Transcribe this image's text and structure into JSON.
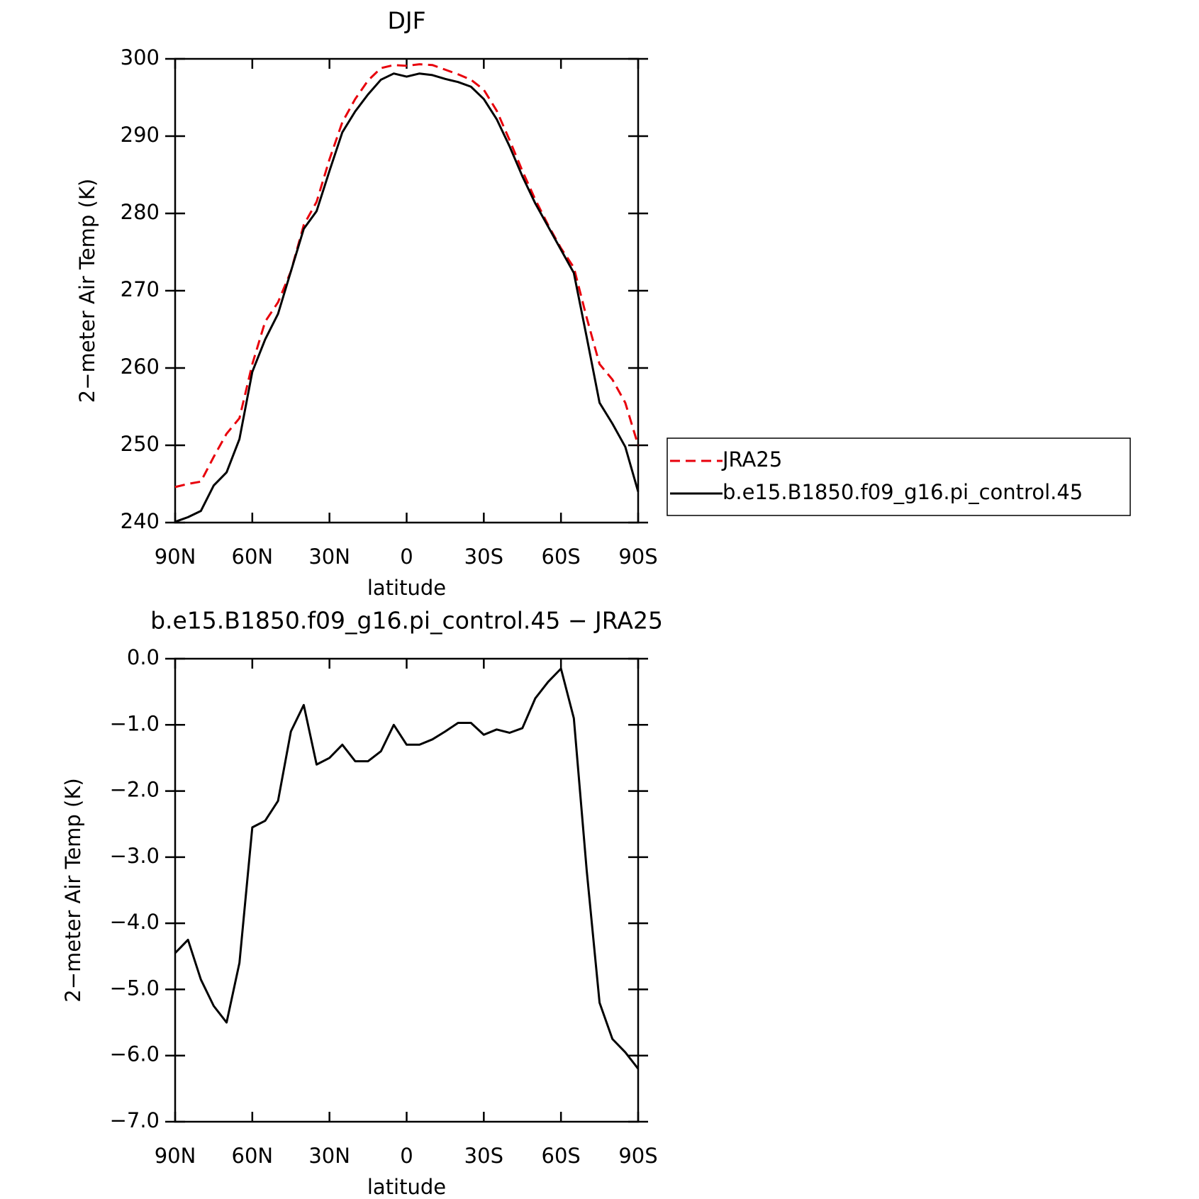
{
  "chart_data": [
    {
      "type": "line",
      "title": "DJF",
      "xlabel": "latitude",
      "ylabel": "2−meter Air Temp (K)",
      "x": [
        90,
        85,
        80,
        75,
        70,
        65,
        60,
        55,
        50,
        45,
        40,
        35,
        30,
        25,
        20,
        15,
        10,
        5,
        0,
        -5,
        -10,
        -15,
        -20,
        -25,
        -30,
        -35,
        -40,
        -45,
        -50,
        -55,
        -60,
        -65,
        -70,
        -75,
        -80,
        -85,
        -90
      ],
      "xlim": [
        90,
        -90
      ],
      "xticks": [
        {
          "value": 90,
          "label": "90N"
        },
        {
          "value": 60,
          "label": "60N"
        },
        {
          "value": 30,
          "label": "30N"
        },
        0,
        {
          "value": -30,
          "label": "30S"
        },
        {
          "value": -60,
          "label": "60S"
        },
        {
          "value": -90,
          "label": "90S"
        }
      ],
      "ylim": [
        240,
        300
      ],
      "yticks": [
        240,
        250,
        260,
        270,
        280,
        290,
        300
      ],
      "legend": "right",
      "series": [
        {
          "name": "JRA25",
          "color": "#e8000b",
          "style": "dashed",
          "values": [
            244.6,
            245,
            245.3,
            248.5,
            251.5,
            253.5,
            260.5,
            266,
            268.5,
            272.5,
            278.5,
            281.5,
            287,
            291.8,
            294.8,
            297.2,
            298.8,
            299.2,
            299.1,
            299.3,
            299.2,
            298.6,
            298.0,
            297.3,
            296,
            293.3,
            289.5,
            285.5,
            281.8,
            278.5,
            275.5,
            273,
            266.5,
            260.5,
            258.5,
            255.5,
            250
          ]
        },
        {
          "name": "b.e15.B1850.f09_g16.pi_control.45",
          "color": "#000000",
          "style": "solid",
          "values": [
            240.1,
            240.7,
            241.5,
            244.8,
            246.5,
            250.8,
            259.5,
            263.7,
            267,
            272.5,
            278,
            280.3,
            285.5,
            290.5,
            293.2,
            295.4,
            297.3,
            298.1,
            297.7,
            298.1,
            297.9,
            297.4,
            297.0,
            296.4,
            294.8,
            292.2,
            288.7,
            284.8,
            281.3,
            278.3,
            275.3,
            272.3,
            264,
            255.5,
            252.8,
            249.8,
            244
          ]
        }
      ]
    },
    {
      "type": "line",
      "title": "b.e15.B1850.f09_g16.pi_control.45 − JRA25",
      "xlabel": "latitude",
      "ylabel": "2−meter Air Temp (K)",
      "x": [
        90,
        85,
        80,
        75,
        70,
        65,
        60,
        55,
        50,
        45,
        40,
        35,
        30,
        25,
        20,
        15,
        10,
        5,
        0,
        -5,
        -10,
        -15,
        -20,
        -25,
        -30,
        -35,
        -40,
        -45,
        -50,
        -55,
        -60,
        -65,
        -70,
        -75,
        -80,
        -85,
        -90
      ],
      "xlim": [
        90,
        -90
      ],
      "xticks": [
        {
          "value": 90,
          "label": "90N"
        },
        {
          "value": 60,
          "label": "60N"
        },
        {
          "value": 30,
          "label": "30N"
        },
        0,
        {
          "value": -30,
          "label": "30S"
        },
        {
          "value": -60,
          "label": "60S"
        },
        {
          "value": -90,
          "label": "90S"
        }
      ],
      "ylim": [
        -7,
        0
      ],
      "yticks": [
        {
          "value": -7,
          "label": "−7.0"
        },
        {
          "value": -6,
          "label": "−6.0"
        },
        {
          "value": -5,
          "label": "−5.0"
        },
        {
          "value": -4,
          "label": "−4.0"
        },
        {
          "value": -3,
          "label": "−3.0"
        },
        {
          "value": -2,
          "label": "−2.0"
        },
        {
          "value": -1,
          "label": "−1.0"
        },
        {
          "value": 0,
          "label": "0.0"
        }
      ],
      "series": [
        {
          "color": "#000000",
          "style": "solid",
          "values": [
            -4.45,
            -4.25,
            -4.85,
            -5.25,
            -5.5,
            -4.6,
            -2.55,
            -2.45,
            -2.15,
            -1.1,
            -0.7,
            -1.6,
            -1.5,
            -1.3,
            -1.55,
            -1.55,
            -1.4,
            -1.0,
            -1.3,
            -1.3,
            -1.22,
            -1.1,
            -0.97,
            -0.97,
            -1.15,
            -1.07,
            -1.12,
            -1.05,
            -0.6,
            -0.35,
            -0.15,
            -0.9,
            -3.2,
            -5.2,
            -5.75,
            -5.95,
            -6.2
          ]
        }
      ]
    }
  ]
}
